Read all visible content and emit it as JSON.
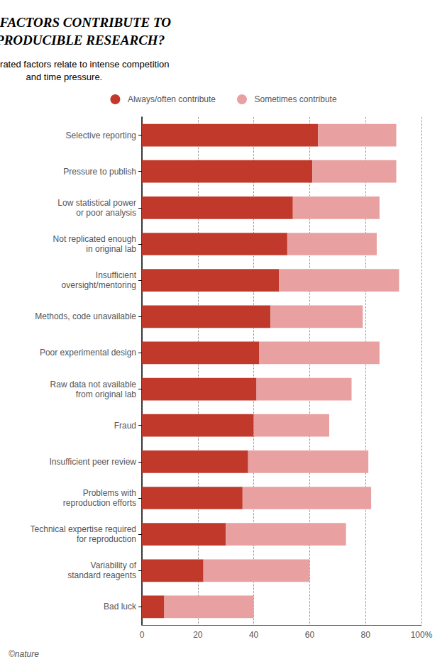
{
  "chart_data": {
    "type": "bar",
    "orientation": "horizontal",
    "stacked": true,
    "title": "WHAT FACTORS CONTRIBUTE TO\nIRREPRODUCIBLE RESEARCH?",
    "subtitle": "Many top-rated factors relate to intense competition\nand time pressure.",
    "categories": [
      "Selective reporting",
      "Pressure to publish",
      "Low statistical power\nor poor analysis",
      "Not replicated enough\nin original lab",
      "Insufficient\noversight/mentoring",
      "Methods, code unavailable",
      "Poor experimental design",
      "Raw data not available\nfrom original lab",
      "Fraud",
      "Insufficient peer review",
      "Problems with\nreproduction efforts",
      "Technical expertise required\nfor reproduction",
      "Variability of\nstandard reagents",
      "Bad luck"
    ],
    "series": [
      {
        "name": "Always/often contribute",
        "color": "#c0392b",
        "values": [
          63,
          61,
          54,
          52,
          49,
          46,
          42,
          41,
          40,
          38,
          36,
          30,
          22,
          8
        ]
      },
      {
        "name": "Sometimes contribute",
        "color": "#e8a0a0",
        "values": [
          28,
          30,
          31,
          32,
          43,
          33,
          43,
          34,
          27,
          43,
          46,
          43,
          38,
          32
        ]
      }
    ],
    "xlim": [
      0,
      100
    ],
    "xticks": [
      0,
      20,
      40,
      60,
      80,
      {
        "value": 100,
        "label": "100%"
      }
    ],
    "grid": true,
    "legend": "top",
    "annotations": [
      "©nature"
    ]
  }
}
